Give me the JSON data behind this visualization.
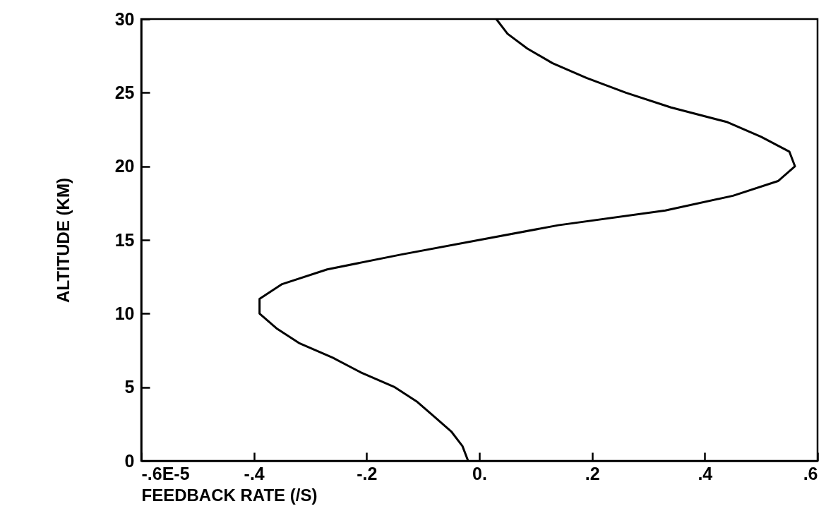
{
  "chart_data": {
    "type": "line",
    "xlabel": "FEEDBACK RATE (/S)",
    "ylabel": "ALTITUDE (KM)",
    "xlim": [
      -0.6,
      0.6
    ],
    "ylim": [
      0,
      30
    ],
    "xticks": [
      {
        "value": -0.6,
        "label": "-.6E-5"
      },
      {
        "value": -0.4,
        "label": "-.4"
      },
      {
        "value": -0.2,
        "label": "-.2"
      },
      {
        "value": 0,
        "label": "0."
      },
      {
        "value": 0.2,
        "label": ".2"
      },
      {
        "value": 0.4,
        "label": ".4"
      },
      {
        "value": 0.6,
        "label": ".6"
      }
    ],
    "yticks": [
      0,
      5,
      10,
      15,
      20,
      25,
      30
    ],
    "series": [
      {
        "color": "#000000",
        "x": [
          -0.02,
          -0.03,
          -0.05,
          -0.08,
          -0.11,
          -0.15,
          -0.21,
          -0.26,
          -0.32,
          -0.36,
          -0.39,
          -0.39,
          -0.35,
          -0.27,
          -0.14,
          0.0,
          0.14,
          0.33,
          0.45,
          0.53,
          0.56,
          0.55,
          0.5,
          0.44,
          0.34,
          0.26,
          0.19,
          0.13,
          0.085,
          0.05,
          0.03
        ],
        "values": [
          0,
          1,
          2,
          3,
          4,
          5,
          6,
          7,
          8,
          9,
          10,
          11,
          12,
          13,
          14,
          15,
          16,
          17,
          18,
          19,
          20,
          21,
          22,
          23,
          24,
          25,
          26,
          27,
          28,
          29,
          30
        ]
      }
    ],
    "grid": false,
    "legend": false,
    "marker": "none",
    "line_style": "solid"
  }
}
